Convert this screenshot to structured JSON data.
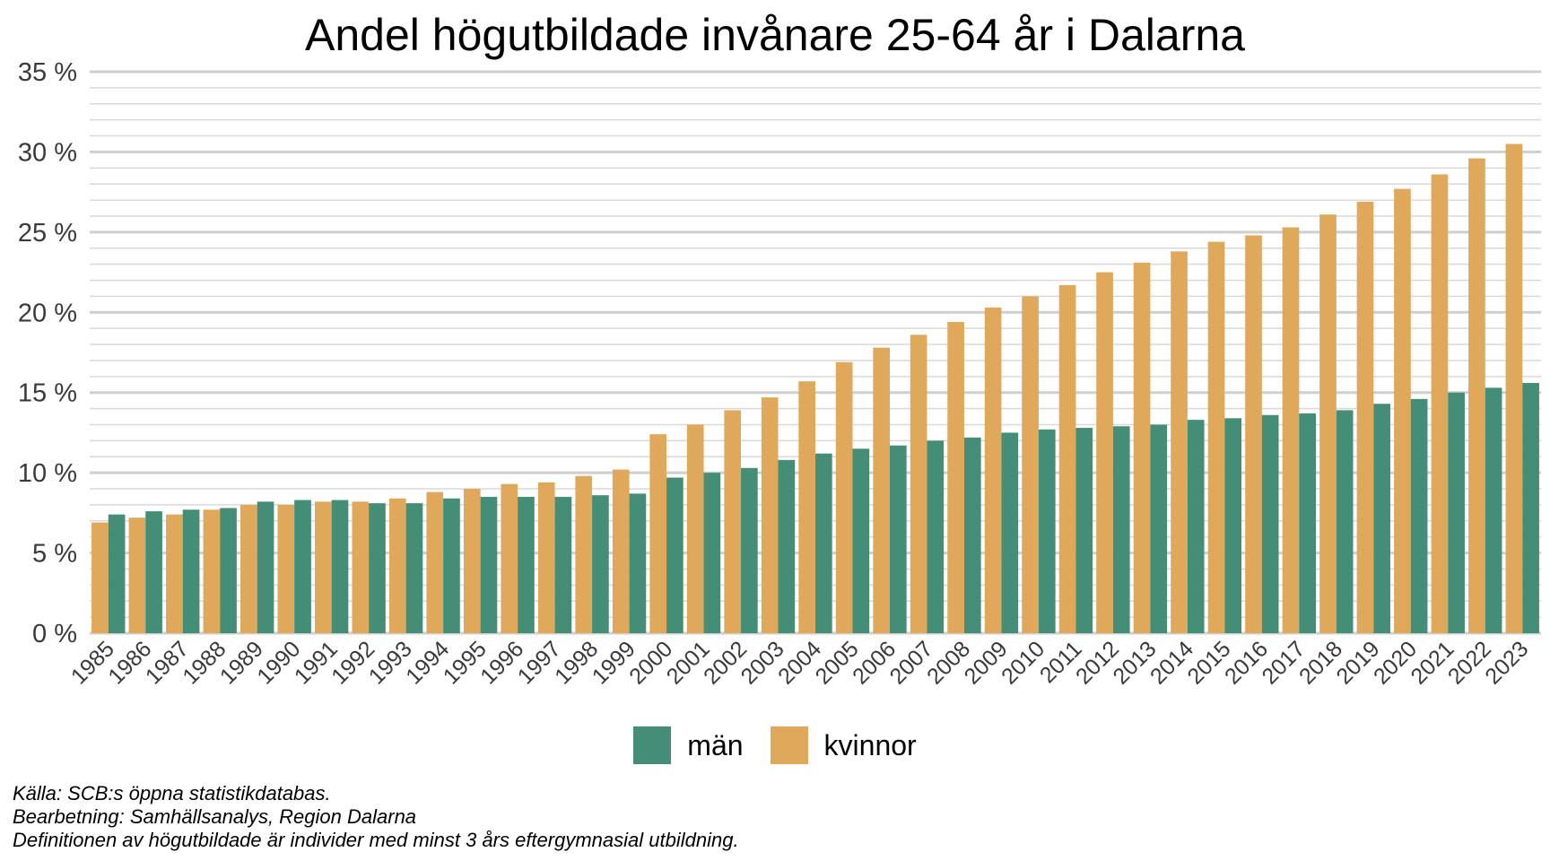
{
  "chart_data": {
    "type": "bar",
    "title": "Andel högutbildade invånare 25-64 år i Dalarna",
    "xlabel": "",
    "ylabel": "",
    "ylim": [
      0,
      35
    ],
    "yticks": [
      0,
      5,
      10,
      15,
      20,
      25,
      30,
      35
    ],
    "ytick_suffix": " %",
    "grid": true,
    "legend_position": "bottom",
    "categories": [
      "1985",
      "1986",
      "1987",
      "1988",
      "1989",
      "1990",
      "1991",
      "1992",
      "1993",
      "1994",
      "1995",
      "1996",
      "1997",
      "1998",
      "1999",
      "2000",
      "2001",
      "2002",
      "2003",
      "2004",
      "2005",
      "2006",
      "2007",
      "2008",
      "2009",
      "2010",
      "2011",
      "2012",
      "2013",
      "2014",
      "2015",
      "2016",
      "2017",
      "2018",
      "2019",
      "2020",
      "2021",
      "2022",
      "2023"
    ],
    "series": [
      {
        "name": "kvinnor",
        "color": "#E0A85A",
        "values": [
          6.9,
          7.2,
          7.4,
          7.7,
          8.0,
          8.0,
          8.2,
          8.2,
          8.4,
          8.8,
          9.0,
          9.3,
          9.4,
          9.8,
          10.2,
          12.4,
          13.0,
          13.9,
          14.7,
          15.7,
          16.9,
          17.8,
          18.6,
          19.4,
          20.3,
          21.0,
          21.7,
          22.5,
          23.1,
          23.8,
          24.4,
          24.8,
          25.3,
          26.1,
          26.9,
          27.7,
          28.6,
          29.6,
          30.5
        ]
      },
      {
        "name": "män",
        "color": "#448E77",
        "values": [
          7.4,
          7.6,
          7.7,
          7.8,
          8.2,
          8.3,
          8.3,
          8.1,
          8.1,
          8.4,
          8.5,
          8.5,
          8.5,
          8.6,
          8.7,
          9.7,
          10.0,
          10.3,
          10.8,
          11.2,
          11.5,
          11.7,
          12.0,
          12.2,
          12.5,
          12.7,
          12.8,
          12.9,
          13.0,
          13.3,
          13.4,
          13.6,
          13.7,
          13.9,
          14.3,
          14.6,
          15.0,
          15.3,
          15.6
        ]
      }
    ],
    "legend": [
      {
        "name": "män",
        "color": "#448E77"
      },
      {
        "name": "kvinnor",
        "color": "#E0A85A"
      }
    ]
  },
  "notes": [
    "Källa: SCB:s öppna statistikdatabas.",
    "Bearbetning: Samhällsanalys, Region Dalarna",
    "Definitionen av högutbildade är individer med minst 3 års eftergymnasial utbildning."
  ]
}
